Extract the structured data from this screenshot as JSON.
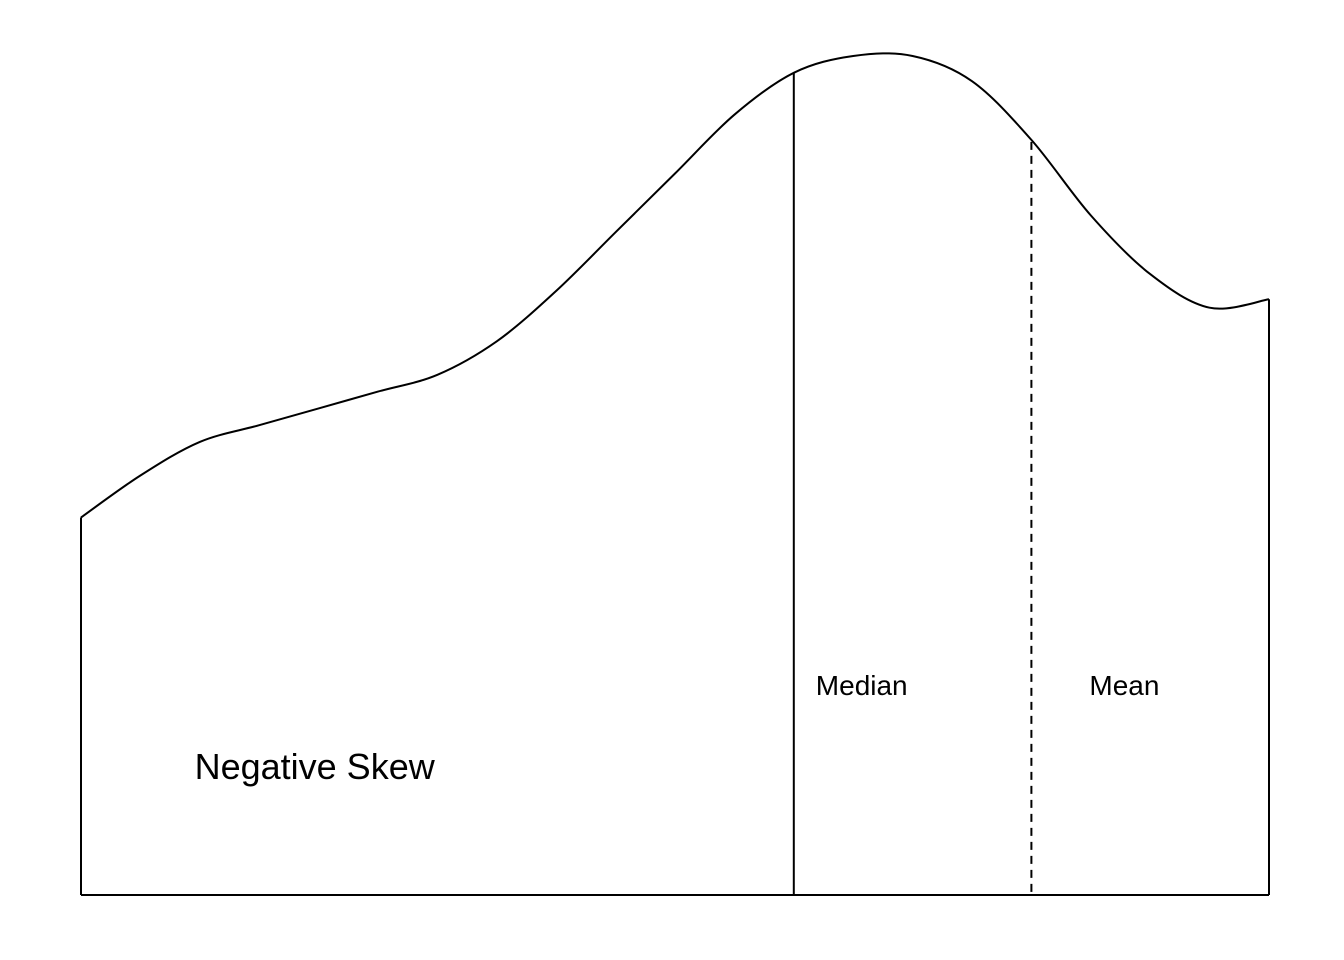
{
  "chart_data": {
    "type": "area",
    "title": "",
    "xlabel": "",
    "ylabel": "",
    "axes_visible": false,
    "grid": false,
    "xlim": [
      0,
      1
    ],
    "ylim": [
      0,
      1
    ],
    "curve": {
      "x": [
        0,
        0.05,
        0.1,
        0.15,
        0.2,
        0.25,
        0.3,
        0.35,
        0.4,
        0.45,
        0.5,
        0.55,
        0.6,
        0.65,
        0.7,
        0.75,
        0.8,
        0.85,
        0.9,
        0.95,
        1.0
      ],
      "y": [
        0.45,
        0.5,
        0.54,
        0.56,
        0.58,
        0.6,
        0.62,
        0.66,
        0.72,
        0.79,
        0.86,
        0.93,
        0.98,
        1.0,
        1.0,
        0.97,
        0.9,
        0.81,
        0.74,
        0.7,
        0.71
      ]
    },
    "markers": [
      {
        "name": "median",
        "x": 0.6,
        "style": "solid",
        "label": "Median"
      },
      {
        "name": "mean",
        "x": 0.8,
        "style": "dashed",
        "label": "Mean"
      }
    ],
    "annotation": {
      "text": "Negative Skew",
      "x": 0.2,
      "y": 0.15
    }
  },
  "colors": {
    "line": "#000000",
    "background": "#ffffff"
  }
}
